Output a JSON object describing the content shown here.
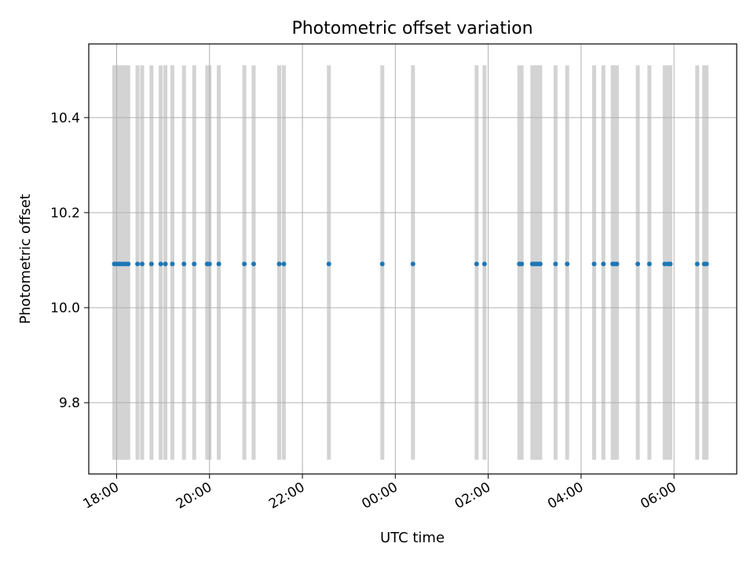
{
  "chart_data": {
    "type": "scatter",
    "title": "Photometric offset variation",
    "xlabel": "UTC time",
    "ylabel": "Photometric offset",
    "x_unit": "hours since 18:00 UTC",
    "xlim": [
      -0.6,
      13.35
    ],
    "ylim": [
      9.65,
      10.555
    ],
    "x_ticks": [
      {
        "value": 0,
        "label": "18:00"
      },
      {
        "value": 2,
        "label": "20:00"
      },
      {
        "value": 4,
        "label": "22:00"
      },
      {
        "value": 6,
        "label": "00:00"
      },
      {
        "value": 8,
        "label": "02:00"
      },
      {
        "value": 10,
        "label": "04:00"
      },
      {
        "value": 12,
        "label": "06:00"
      }
    ],
    "y_ticks": [
      {
        "value": 9.8,
        "label": "9.8"
      },
      {
        "value": 10.0,
        "label": "10.0"
      },
      {
        "value": 10.2,
        "label": "10.2"
      },
      {
        "value": 10.4,
        "label": "10.4"
      }
    ],
    "grid": true,
    "span_range": [
      9.68,
      10.51
    ],
    "colors": {
      "points": "#1f77b4",
      "spans": "#d3d3d3",
      "grid": "#b0b0b0"
    },
    "series": [
      {
        "x": [
          -0.05,
          0.0,
          0.05,
          0.1,
          0.15,
          0.2,
          0.25,
          0.45,
          0.55,
          0.75,
          0.95,
          1.05,
          1.2,
          1.45,
          1.67,
          1.95,
          2.0,
          2.2,
          2.75,
          2.95,
          3.5,
          3.6,
          4.57,
          5.72,
          6.38,
          7.75,
          7.92,
          8.67,
          8.72,
          8.95,
          9.0,
          9.05,
          9.1,
          9.12,
          9.45,
          9.7,
          10.28,
          10.48,
          10.68,
          10.72,
          10.77,
          11.22,
          11.47,
          11.8,
          11.87,
          11.92,
          12.5,
          12.65,
          12.7
        ],
        "y": [
          10.092,
          10.092,
          10.092,
          10.092,
          10.092,
          10.092,
          10.092,
          10.092,
          10.092,
          10.092,
          10.092,
          10.092,
          10.092,
          10.092,
          10.092,
          10.092,
          10.092,
          10.092,
          10.092,
          10.092,
          10.092,
          10.092,
          10.092,
          10.092,
          10.092,
          10.092,
          10.092,
          10.092,
          10.092,
          10.092,
          10.092,
          10.092,
          10.092,
          10.092,
          10.092,
          10.092,
          10.092,
          10.092,
          10.092,
          10.092,
          10.092,
          10.092,
          10.092,
          10.092,
          10.092,
          10.092,
          10.092,
          10.092,
          10.092
        ]
      }
    ]
  }
}
